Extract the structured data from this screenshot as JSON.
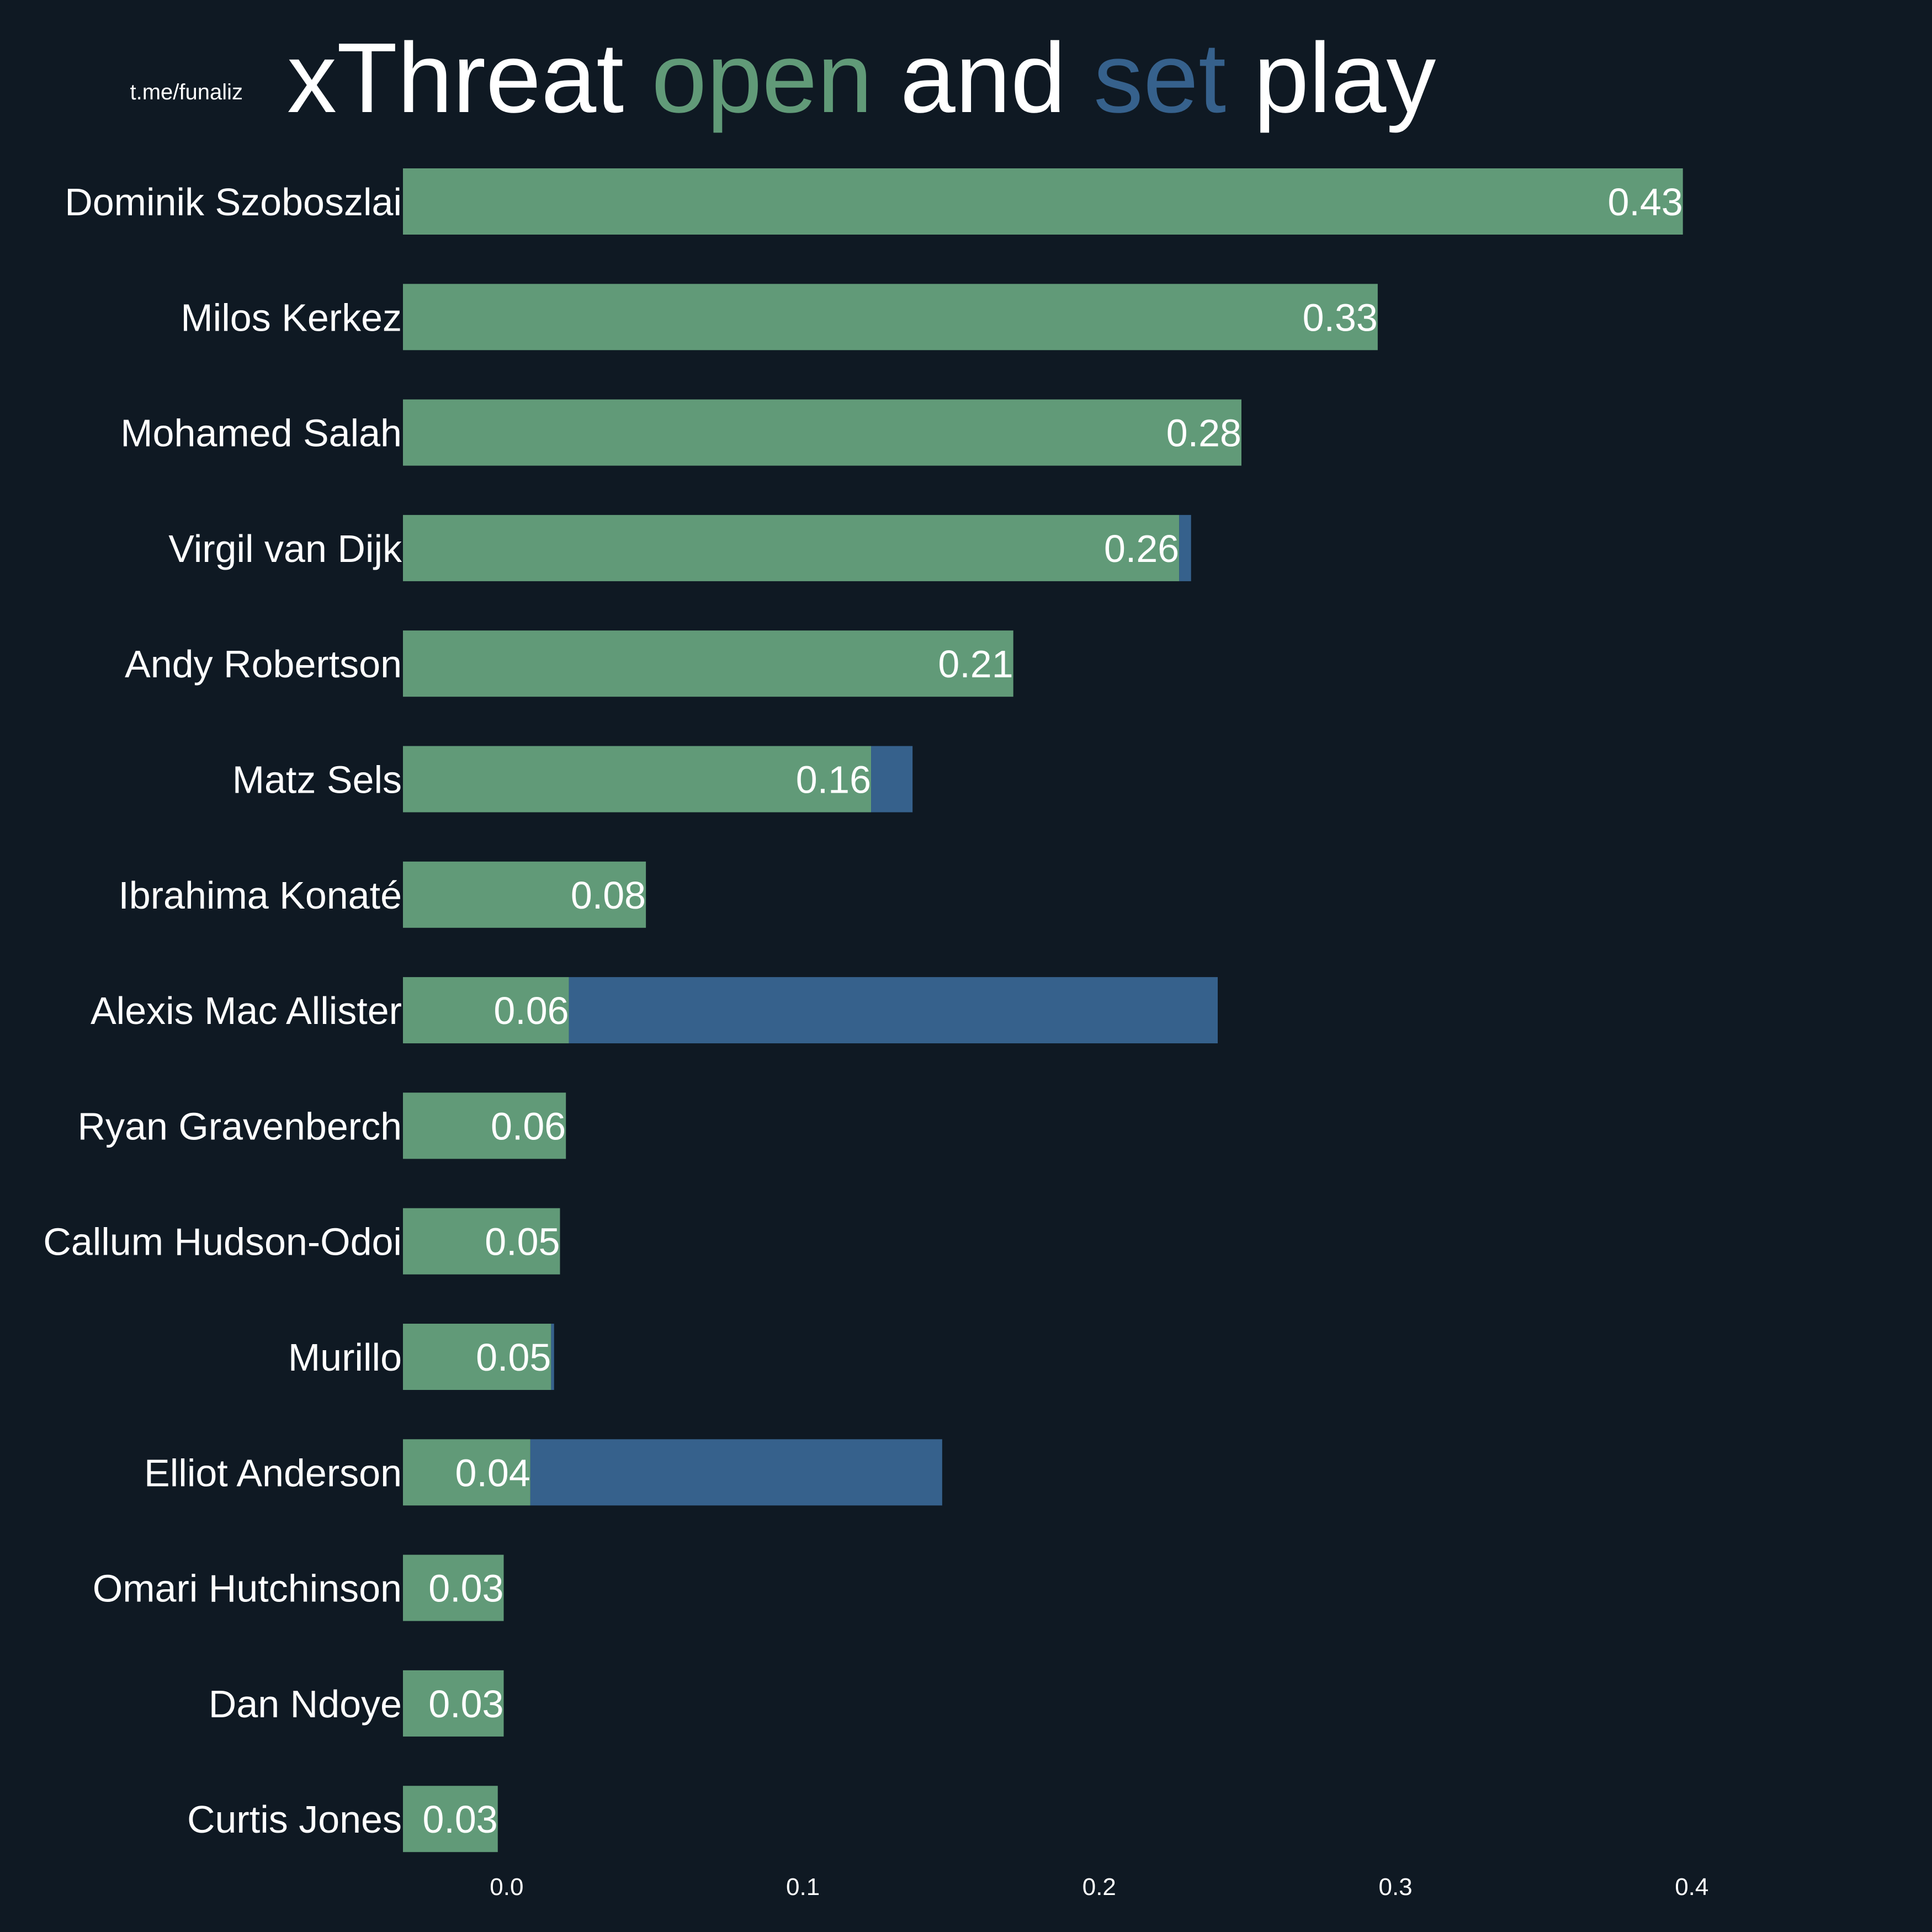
{
  "watermark": "t.me/funaliz",
  "title": {
    "parts": [
      {
        "text": "xThreat ",
        "color": "#ffffff"
      },
      {
        "text": "open",
        "color": "#619a78"
      },
      {
        "text": " and ",
        "color": "#ffffff"
      },
      {
        "text": "set",
        "color": "#36618c"
      },
      {
        "text": " play",
        "color": "#ffffff"
      }
    ]
  },
  "colors": {
    "background": "#0f1923",
    "open": "#619a78",
    "set": "#36618c",
    "text": "#ffffff"
  },
  "chart_data": {
    "type": "bar",
    "orientation": "horizontal",
    "stacked": true,
    "categories": [
      "Dominik Szoboszlai",
      "Milos Kerkez",
      "Mohamed Salah",
      "Virgil van Dijk",
      "Andy Robertson",
      "Matz Sels",
      "Ibrahima Konaté",
      "Alexis Mac Allister",
      "Ryan Gravenberch",
      "Callum Hudson-Odoi",
      "Murillo",
      "Elliot Anderson",
      "Omari Hutchinson",
      "Dan Ndoye",
      "Curtis Jones"
    ],
    "series": [
      {
        "name": "open",
        "values": [
          0.432,
          0.329,
          0.283,
          0.262,
          0.206,
          0.158,
          0.082,
          0.056,
          0.055,
          0.053,
          0.05,
          0.043,
          0.034,
          0.034,
          0.032
        ]
      },
      {
        "name": "set",
        "values": [
          0.0,
          0.0,
          0.0,
          0.004,
          0.0,
          0.014,
          0.0,
          0.219,
          0.0,
          0.0,
          0.001,
          0.139,
          0.0,
          0.0,
          0.0
        ]
      }
    ],
    "labels": [
      "0.43",
      "0.33",
      "0.28",
      "0.26",
      "0.21",
      "0.16",
      "0.08",
      "0.06",
      "0.06",
      "0.05",
      "0.05",
      "0.04",
      "0.03",
      "0.03",
      "0.03"
    ],
    "xticks": [
      "0.0",
      "0.1",
      "0.2",
      "0.3",
      "0.4"
    ],
    "xtick_values": [
      0.0,
      0.1,
      0.2,
      0.3,
      0.4
    ],
    "xlim": [
      -0.035,
      0.455
    ],
    "grid": false,
    "legend": "none"
  }
}
